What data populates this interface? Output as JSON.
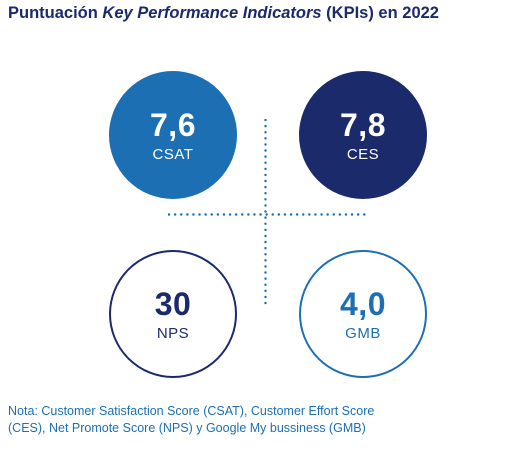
{
  "title": {
    "prefix": "Puntuación ",
    "emphasis": "Key Performance Indicators",
    "suffix": " (KPIs) en 2022"
  },
  "colors": {
    "navy": "#1b2a6b",
    "blue": "#1c6fb3",
    "white": "#ffffff"
  },
  "kpis": {
    "csat": {
      "value": "7,6",
      "label": "CSAT"
    },
    "ces": {
      "value": "7,8",
      "label": "CES"
    },
    "nps": {
      "value": "30",
      "label": "NPS"
    },
    "gmb": {
      "value": "4,0",
      "label": "GMB"
    }
  },
  "note": {
    "line1": "Nota: Customer Satisfaction Score (CSAT), Customer Effort Score",
    "line2": "(CES), Net Promote Score (NPS) y Google My bussiness (GMB)"
  }
}
